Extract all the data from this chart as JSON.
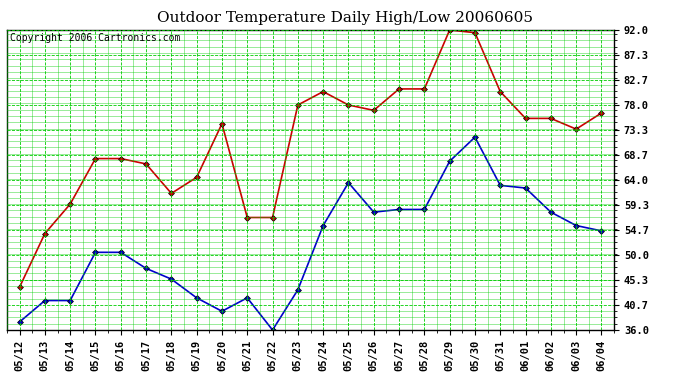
{
  "title": "Outdoor Temperature Daily High/Low 20060605",
  "copyright": "Copyright 2006 Cartronics.com",
  "dates": [
    "05/12",
    "05/13",
    "05/14",
    "05/15",
    "05/16",
    "05/17",
    "05/18",
    "05/19",
    "05/20",
    "05/21",
    "05/22",
    "05/23",
    "05/24",
    "05/25",
    "05/26",
    "05/27",
    "05/28",
    "05/29",
    "05/30",
    "05/31",
    "06/01",
    "06/02",
    "06/03",
    "06/04"
  ],
  "high": [
    44.0,
    54.0,
    59.5,
    68.0,
    68.0,
    67.0,
    61.5,
    64.5,
    74.5,
    57.0,
    57.0,
    78.0,
    80.5,
    78.0,
    77.0,
    81.0,
    81.0,
    92.0,
    91.5,
    80.5,
    75.5,
    75.5,
    73.5,
    76.5
  ],
  "low": [
    37.5,
    41.5,
    41.5,
    50.5,
    50.5,
    47.5,
    45.5,
    42.0,
    39.5,
    42.0,
    36.0,
    43.5,
    55.5,
    63.5,
    58.0,
    58.5,
    58.5,
    67.5,
    72.0,
    63.0,
    62.5,
    58.0,
    55.5,
    54.5
  ],
  "high_color": "#cc0000",
  "low_color": "#0000cc",
  "marker": "D",
  "marker_size": 3,
  "bg_color": "#ffffff",
  "plot_bg_color": "#ffffff",
  "grid_color": "#00cc00",
  "grid_minor_color": "#00cc00",
  "yticks": [
    36.0,
    40.7,
    45.3,
    50.0,
    54.7,
    59.3,
    64.0,
    68.7,
    73.3,
    78.0,
    82.7,
    87.3,
    92.0
  ],
  "ylim": [
    36.0,
    92.0
  ],
  "border_color": "#000000",
  "title_fontsize": 11,
  "copyright_fontsize": 7,
  "tick_fontsize": 7.5,
  "linewidth": 1.2
}
